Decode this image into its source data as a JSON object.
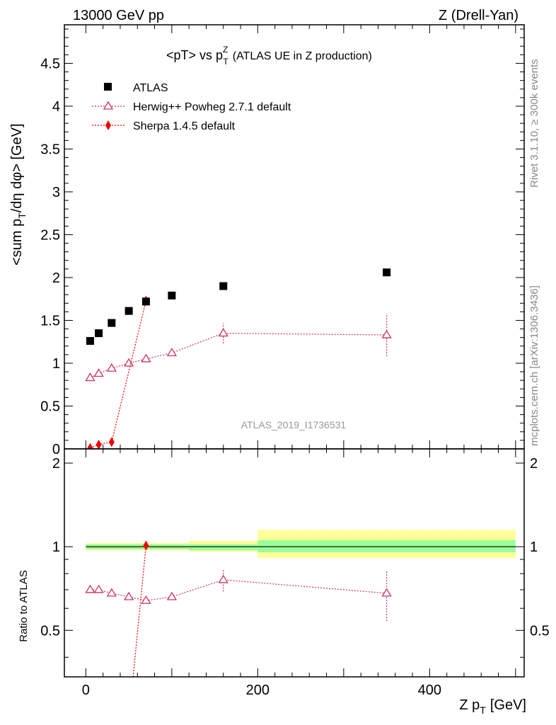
{
  "header": {
    "left": "13000 GeV pp",
    "right": "Z (Drell-Yan)"
  },
  "side": {
    "rivet": "Rivet 3.1.10, ≥ 300k events",
    "mcplots": "mcplots.cern.ch [arXiv:1306.3436]"
  },
  "analysis_label": "ATLAS_2019_I1736531",
  "colors": {
    "data": "#000000",
    "herwig": "#cc3366",
    "sherpa": "#ee0000",
    "band_inner": "#99ff99",
    "band_outer": "#ffff99"
  },
  "chart_data": [
    {
      "type": "scatter",
      "title_main": "<pT> vs p",
      "title_sup": "Z",
      "title_sub": "T",
      "title_tail": "(ATLAS UE in Z production)",
      "ylabel_parts": [
        "<sum p",
        "T",
        "/dη dφ> [GeV]"
      ],
      "xlim": [
        -25,
        510
      ],
      "ylim": [
        0,
        4.95
      ],
      "y_ticks": [
        0,
        0.5,
        1,
        1.5,
        2,
        2.5,
        3,
        3.5,
        4,
        4.5
      ],
      "y_tick_labels": [
        "0",
        "0.5",
        "1",
        "1.5",
        "2",
        "2.5",
        "3",
        "3.5",
        "4",
        "4.5"
      ],
      "series": [
        {
          "name": "ATLAS",
          "marker": "square",
          "x": [
            5,
            15,
            30,
            50,
            70,
            100,
            160,
            350
          ],
          "y": [
            1.26,
            1.35,
            1.47,
            1.61,
            1.72,
            1.79,
            1.9,
            2.06
          ]
        },
        {
          "name": "Herwig++ Powheg 2.7.1 default",
          "marker": "triangle",
          "x": [
            5,
            15,
            30,
            50,
            70,
            100,
            160,
            350
          ],
          "y": [
            0.83,
            0.88,
            0.94,
            1.0,
            1.05,
            1.12,
            1.35,
            1.33
          ],
          "yerr": [
            0,
            0,
            0,
            0,
            0,
            0,
            0.12,
            0.25
          ]
        },
        {
          "name": "Sherpa 1.4.5 default",
          "marker": "diamond",
          "x": [
            5,
            15,
            30,
            70
          ],
          "y": [
            0.01,
            0.05,
            0.08,
            1.73
          ]
        }
      ]
    },
    {
      "type": "scatter",
      "ylabel": "Ratio to ATLAS",
      "xlabel_main": "Z p",
      "xlabel_sub": "T",
      "xlabel_tail": "[GeV]",
      "xlim": [
        -25,
        510
      ],
      "ylim": [
        0.34,
        2.25
      ],
      "y_ticks": [
        0.5,
        1,
        2
      ],
      "y_tick_labels": [
        "0.5",
        "1",
        "2"
      ],
      "x_ticks": [
        0,
        200,
        400
      ],
      "x_tick_labels": [
        "0",
        "200",
        "400"
      ],
      "bands": [
        {
          "x0": 0,
          "x1": 120,
          "outer": [
            0.97,
            1.03
          ],
          "inner": [
            0.98,
            1.02
          ]
        },
        {
          "x0": 120,
          "x1": 200,
          "outer": [
            0.96,
            1.05
          ],
          "inner": [
            0.97,
            1.02
          ]
        },
        {
          "x0": 200,
          "x1": 500,
          "outer": [
            0.91,
            1.15
          ],
          "inner": [
            0.955,
            1.055
          ]
        }
      ],
      "series": [
        {
          "name": "Herwig++ Powheg 2.7.1 default",
          "marker": "triangle",
          "x": [
            5,
            15,
            30,
            50,
            70,
            100,
            160,
            350
          ],
          "y": [
            0.7,
            0.7,
            0.68,
            0.66,
            0.64,
            0.66,
            0.76,
            0.68
          ],
          "yerr": [
            0,
            0,
            0,
            0,
            0,
            0,
            0.07,
            0.14
          ]
        },
        {
          "name": "Sherpa 1.4.5 default",
          "marker": "diamond",
          "x": [
            70
          ],
          "y": [
            1.01
          ],
          "line_x": [
            55,
            70
          ],
          "line_y": [
            0.34,
            1.01
          ]
        }
      ]
    }
  ]
}
